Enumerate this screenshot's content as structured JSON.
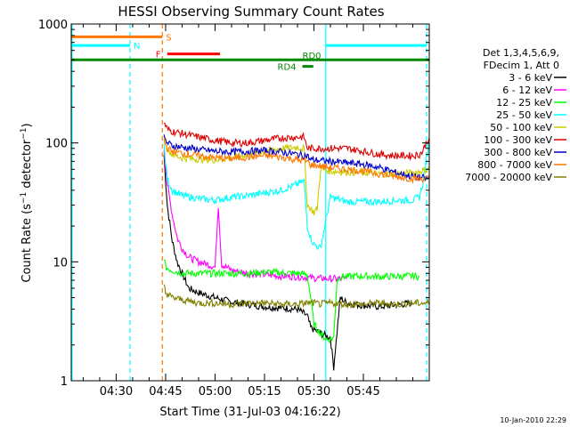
{
  "chart_data": {
    "type": "line",
    "title": "HESSI Observing Summary Count Rates",
    "xlabel": "Start Time (31-Jul-03 04:16:22)",
    "ylabel": "Count Rate (s⁻¹ detector⁻¹)",
    "ylabel_parts": {
      "pre": "Count Rate (s",
      "sup1": "−1",
      "mid": " detector",
      "sup2": "−1",
      "post": ")"
    },
    "yscale": "log",
    "ylim": [
      1,
      1000
    ],
    "xlim_minutes": [
      16.37,
      125.0
    ],
    "x_ticks": [
      {
        "label": "04:30",
        "minute": 30
      },
      {
        "label": "04:45",
        "minute": 45
      },
      {
        "label": "05:00",
        "minute": 60
      },
      {
        "label": "05:15",
        "minute": 75
      },
      {
        "label": "05:30",
        "minute": 90
      },
      {
        "label": "05:45",
        "minute": 105
      }
    ],
    "y_ticks": [
      {
        "label": "1",
        "value": 1
      },
      {
        "label": "10",
        "value": 10
      },
      {
        "label": "100",
        "value": 100
      },
      {
        "label": "1000",
        "value": 1000
      }
    ],
    "legend": {
      "placement": "right",
      "header": [
        "Det 1,3,4,5,6,9,",
        "FDecim 1, Att 0"
      ],
      "entries": [
        {
          "label": "3 - 6 keV",
          "color": "#000000"
        },
        {
          "label": "6 - 12 keV",
          "color": "#ff00ff"
        },
        {
          "label": "12 - 25 keV",
          "color": "#00ff00"
        },
        {
          "label": "25 - 50 keV",
          "color": "#00ffff"
        },
        {
          "label": "50 - 100 keV",
          "color": "#cccc00"
        },
        {
          "label": "100 - 300 keV",
          "color": "#dd0000"
        },
        {
          "label": "300 - 800 keV",
          "color": "#0000cc"
        },
        {
          "label": "800 - 7000 keV",
          "color": "#ff7700"
        },
        {
          "label": "7000 - 20000 keV",
          "color": "#808000"
        }
      ]
    },
    "series": [
      {
        "name": "3 - 6 keV",
        "color": "#000000",
        "x": [
          44.5,
          45.5,
          47,
          48.5,
          50,
          52,
          55,
          60,
          65,
          70,
          75,
          80,
          85,
          88,
          89,
          92,
          95,
          96,
          98,
          100,
          105,
          110,
          120
        ],
        "y": [
          80,
          30,
          15,
          10,
          8,
          6,
          5.5,
          5,
          4.6,
          4.4,
          4.2,
          4.1,
          4.0,
          3.5,
          2.8,
          2.5,
          2.3,
          1.3,
          5,
          4.5,
          4.3,
          4.2,
          4.5
        ]
      },
      {
        "name": "6 - 12 keV",
        "color": "#ff00ff",
        "x": [
          44.5,
          45.5,
          47,
          48.5,
          50,
          52,
          55,
          58,
          60,
          61,
          62,
          65,
          70,
          75,
          80,
          85,
          90,
          95,
          100
        ],
        "y": [
          90,
          45,
          25,
          16,
          13,
          11,
          10,
          9.5,
          9,
          30,
          9.5,
          8.5,
          8,
          7.8,
          7.6,
          7.5,
          7.3,
          7.2,
          7.2
        ]
      },
      {
        "name": "12 - 25 keV",
        "color": "#00ff00",
        "x": [
          44.5,
          45,
          47,
          50,
          55,
          60,
          65,
          70,
          75,
          80,
          85,
          88,
          89,
          90,
          92,
          94,
          96,
          97,
          98,
          100,
          105,
          110,
          120,
          122
        ],
        "y": [
          11,
          9,
          8.5,
          8,
          8,
          8,
          8,
          8,
          8.2,
          8.1,
          8.0,
          7.8,
          5,
          3,
          2.5,
          2.2,
          2.3,
          7,
          7.5,
          7.5,
          7.6,
          7.5,
          7.6,
          7.5
        ]
      },
      {
        "name": "25 - 50 keV",
        "color": "#00ffff",
        "x": [
          44.5,
          45.5,
          47,
          50,
          55,
          60,
          65,
          70,
          75,
          80,
          85,
          87,
          88,
          89,
          90,
          92,
          95,
          100,
          105,
          110,
          115,
          120,
          122,
          123,
          124,
          125
        ],
        "y": [
          95,
          50,
          40,
          36,
          34,
          33,
          35,
          36,
          38,
          40,
          45,
          48,
          20,
          16,
          14,
          13,
          35,
          32,
          32,
          32,
          33,
          33,
          35,
          45,
          70,
          100
        ]
      },
      {
        "name": "50 - 100 keV",
        "color": "#cccc00",
        "x": [
          44.5,
          45.5,
          47,
          50,
          55,
          60,
          65,
          70,
          75,
          80,
          85,
          87,
          88,
          89,
          90,
          91,
          92,
          95,
          100,
          105,
          110,
          115,
          120,
          125
        ],
        "y": [
          120,
          90,
          80,
          75,
          73,
          72,
          75,
          80,
          85,
          90,
          92,
          90,
          30,
          28,
          26,
          28,
          60,
          58,
          57,
          56,
          55,
          55,
          56,
          60
        ]
      },
      {
        "name": "100 - 300 keV",
        "color": "#dd0000",
        "x": [
          44.5,
          45.5,
          47,
          50,
          55,
          60,
          65,
          70,
          75,
          80,
          85,
          87,
          88,
          89,
          90,
          92,
          95,
          100,
          105,
          110,
          115,
          120,
          122,
          123,
          124,
          125
        ],
        "y": [
          150,
          130,
          125,
          120,
          112,
          105,
          100,
          100,
          105,
          110,
          112,
          112,
          90,
          90,
          90,
          90,
          90,
          90,
          85,
          80,
          78,
          78,
          80,
          85,
          100,
          110
        ]
      },
      {
        "name": "300 - 800 keV",
        "color": "#0000cc",
        "x": [
          44.5,
          45.5,
          47,
          50,
          55,
          60,
          65,
          70,
          75,
          80,
          85,
          88,
          89,
          90,
          92,
          95,
          100,
          105,
          110,
          115,
          120,
          125
        ],
        "y": [
          110,
          100,
          95,
          92,
          88,
          85,
          84,
          85,
          86,
          84,
          80,
          78,
          72,
          72,
          71,
          70,
          68,
          66,
          62,
          56,
          52,
          50
        ]
      },
      {
        "name": "800 - 7000 keV",
        "color": "#ff7700",
        "x": [
          44.5,
          45.5,
          47,
          50,
          55,
          60,
          65,
          70,
          75,
          80,
          85,
          88,
          89,
          90,
          92,
          95,
          100,
          105,
          110,
          115,
          120,
          125
        ],
        "y": [
          105,
          90,
          85,
          82,
          78,
          75,
          74,
          76,
          78,
          76,
          72,
          70,
          65,
          65,
          64,
          62,
          60,
          58,
          55,
          52,
          50,
          50
        ]
      },
      {
        "name": "7000 - 20000 keV",
        "color": "#808000",
        "x": [
          44.5,
          45,
          47,
          50,
          55,
          60,
          65,
          70,
          75,
          80,
          85,
          88,
          90,
          92,
          95,
          100,
          105,
          110,
          115,
          120,
          125
        ],
        "y": [
          6.5,
          5.5,
          5,
          4.8,
          4.5,
          4.5,
          4.4,
          4.5,
          4.5,
          4.4,
          4.4,
          4.5,
          4.5,
          4.4,
          4.5,
          4.4,
          4.4,
          4.5,
          4.4,
          4.5,
          4.5
        ]
      }
    ],
    "status_bars": [
      {
        "label": "S",
        "color": "#ff7700",
        "x0": 16.37,
        "x1": 44.0,
        "y": 780
      },
      {
        "label": "N",
        "color": "#00ffff",
        "x0": 16.37,
        "x1": 34.2,
        "y": 660
      },
      {
        "label": "F",
        "color": "#ff0000",
        "x0": 45.5,
        "x1": 61.5,
        "y": 560
      },
      {
        "label": "RD0",
        "color": "#008800",
        "x0": 16.37,
        "x1": 125.0,
        "y": 500
      },
      {
        "label": "RD4",
        "color": "#008800",
        "x0": 86.5,
        "x1": 89.8,
        "y": 440
      },
      {
        "label": "",
        "color": "#00ffff",
        "x0": 93.6,
        "x1": 124.2,
        "y": 660
      }
    ],
    "vlines": [
      {
        "minute": 16.6,
        "color": "#00ffff",
        "style": "solid"
      },
      {
        "minute": 34.2,
        "color": "#00ffff",
        "style": "dashed"
      },
      {
        "minute": 44.0,
        "color": "#ff7700",
        "style": "dashed"
      },
      {
        "minute": 93.6,
        "color": "#00ffff",
        "style": "solid"
      },
      {
        "minute": 124.2,
        "color": "#00ffff",
        "style": "dashed"
      }
    ],
    "timestamp": "10-Jan-2010 22:29"
  }
}
